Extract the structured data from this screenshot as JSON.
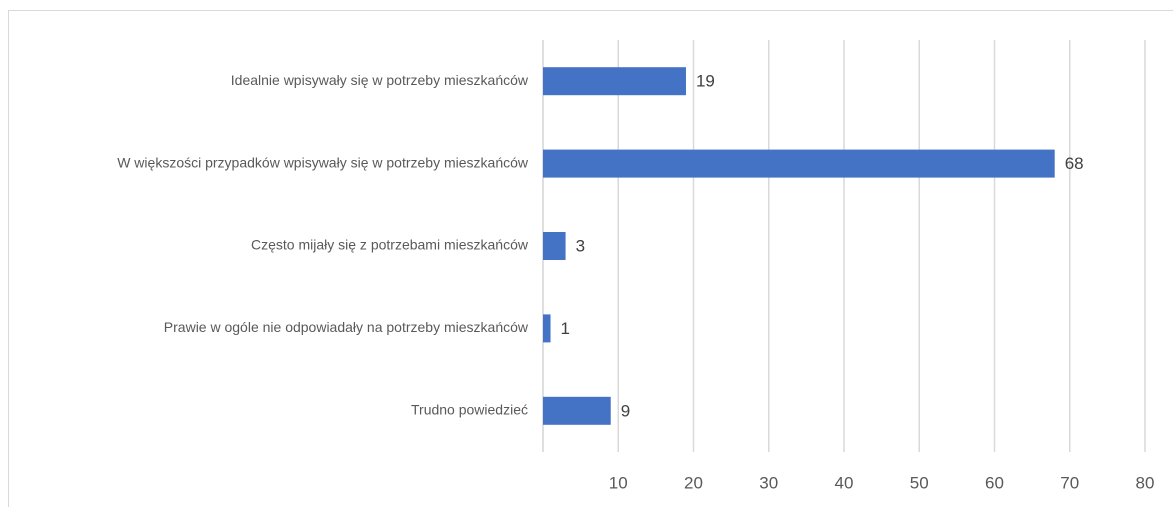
{
  "chart_data": {
    "type": "bar",
    "orientation": "horizontal",
    "categories": [
      "Idealnie wpisywały się w potrzeby mieszkańców",
      "W większości przypadków wpisywały się w potrzeby mieszkańców",
      "Często mijały się z potrzebami mieszkańców",
      "Prawie w ogóle nie odpowiadały na potrzeby mieszkańców",
      "Trudno powiedzieć"
    ],
    "values": [
      19,
      68,
      3,
      1,
      9
    ],
    "color": "#4472c4",
    "xlim": [
      0,
      80
    ],
    "xticks": [
      10,
      20,
      30,
      40,
      50,
      60,
      70,
      80
    ],
    "grid": true
  }
}
